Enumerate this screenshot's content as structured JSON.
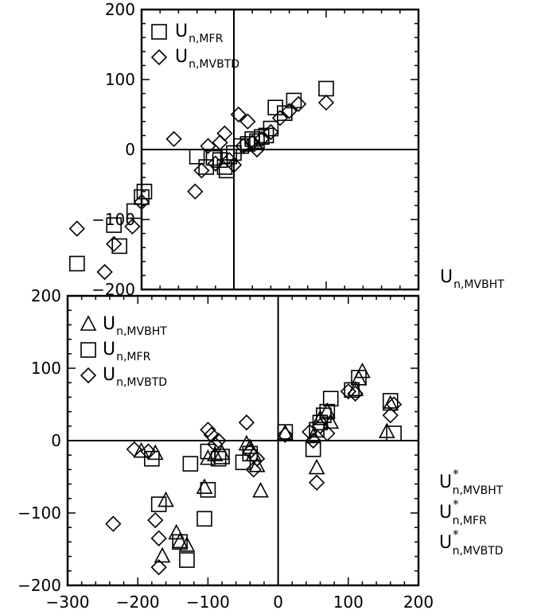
{
  "chart_data": [
    {
      "type": "scatter",
      "xlim": [
        -300,
        200
      ],
      "ylim": [
        -200,
        200
      ],
      "yticks": [
        "200",
        "100",
        "0",
        "−100",
        "−200"
      ],
      "xticks": [],
      "zero_lines": true,
      "legend_position": "top-left",
      "xlabel": "",
      "series": [
        {
          "name": "MFR",
          "marker": "square",
          "points": [
            [
              -170,
              -163
            ],
            [
              -130,
              -108
            ],
            [
              -124,
              -138
            ],
            [
              -97,
              -60
            ],
            [
              -100,
              -68
            ],
            [
              -108,
              -88
            ],
            [
              -40,
              -10
            ],
            [
              -30,
              -25
            ],
            [
              -22,
              -12
            ],
            [
              -15,
              -15
            ],
            [
              -10,
              -25
            ],
            [
              -8,
              -30
            ],
            [
              -5,
              -10
            ],
            [
              0,
              -5
            ],
            [
              8,
              5
            ],
            [
              15,
              8
            ],
            [
              20,
              15
            ],
            [
              25,
              12
            ],
            [
              30,
              18
            ],
            [
              35,
              20
            ],
            [
              40,
              30
            ],
            [
              45,
              60
            ],
            [
              55,
              52
            ],
            [
              65,
              70
            ],
            [
              100,
              87
            ]
          ]
        },
        {
          "name": "MVBTD",
          "marker": "diamond",
          "points": [
            [
              -170,
              -113
            ],
            [
              -140,
              -175
            ],
            [
              -130,
              -135
            ],
            [
              -110,
              -110
            ],
            [
              -100,
              -75
            ],
            [
              -65,
              15
            ],
            [
              -42,
              -60
            ],
            [
              -35,
              -30
            ],
            [
              -28,
              5
            ],
            [
              -20,
              -20
            ],
            [
              -15,
              10
            ],
            [
              -10,
              23
            ],
            [
              -5,
              -15
            ],
            [
              0,
              -22
            ],
            [
              5,
              50
            ],
            [
              10,
              5
            ],
            [
              15,
              40
            ],
            [
              20,
              10
            ],
            [
              25,
              0
            ],
            [
              30,
              15
            ],
            [
              40,
              25
            ],
            [
              50,
              45
            ],
            [
              60,
              55
            ],
            [
              70,
              65
            ],
            [
              100,
              67
            ]
          ]
        }
      ]
    },
    {
      "type": "scatter",
      "xlim": [
        -300,
        200
      ],
      "ylim": [
        -200,
        200
      ],
      "yticks": [
        "200",
        "100",
        "0",
        "−100",
        "−200"
      ],
      "xticks": [
        "−300",
        "−200",
        "−100",
        "0",
        "100",
        "200"
      ],
      "zero_lines": true,
      "legend_position": "top-left",
      "series": [
        {
          "name": "MVBHT",
          "marker": "triangle",
          "points": [
            [
              -195,
              -15
            ],
            [
              -175,
              -18
            ],
            [
              -160,
              -83
            ],
            [
              -165,
              -160
            ],
            [
              -145,
              -128
            ],
            [
              -140,
              -140
            ],
            [
              -130,
              -145
            ],
            [
              -105,
              -65
            ],
            [
              -100,
              -25
            ],
            [
              -90,
              -20
            ],
            [
              -80,
              -18
            ],
            [
              -45,
              -5
            ],
            [
              -40,
              -10
            ],
            [
              -35,
              -20
            ],
            [
              -30,
              -35
            ],
            [
              -25,
              -70
            ],
            [
              10,
              10
            ],
            [
              50,
              5
            ],
            [
              55,
              -38
            ],
            [
              60,
              30
            ],
            [
              70,
              40
            ],
            [
              75,
              25
            ],
            [
              110,
              70
            ],
            [
              115,
              85
            ],
            [
              120,
              95
            ],
            [
              155,
              12
            ],
            [
              160,
              50
            ]
          ]
        },
        {
          "name": "MFR",
          "marker": "square",
          "points": [
            [
              -180,
              -25
            ],
            [
              -170,
              -88
            ],
            [
              -140,
              -140
            ],
            [
              -130,
              -165
            ],
            [
              -125,
              -32
            ],
            [
              -105,
              -108
            ],
            [
              -100,
              -68
            ],
            [
              -100,
              -15
            ],
            [
              -85,
              -25
            ],
            [
              -80,
              -22
            ],
            [
              -50,
              -30
            ],
            [
              -40,
              -18
            ],
            [
              10,
              12
            ],
            [
              50,
              -12
            ],
            [
              55,
              15
            ],
            [
              60,
              25
            ],
            [
              65,
              35
            ],
            [
              70,
              40
            ],
            [
              75,
              58
            ],
            [
              105,
              70
            ],
            [
              115,
              87
            ],
            [
              160,
              55
            ],
            [
              165,
              10
            ]
          ]
        },
        {
          "name": "MVBTD",
          "marker": "diamond",
          "points": [
            [
              -235,
              -115
            ],
            [
              -205,
              -12
            ],
            [
              -185,
              -15
            ],
            [
              -175,
              -110
            ],
            [
              -170,
              -135
            ],
            [
              -170,
              -175
            ],
            [
              -100,
              15
            ],
            [
              -95,
              8
            ],
            [
              -90,
              -5
            ],
            [
              -85,
              0
            ],
            [
              -45,
              25
            ],
            [
              -40,
              -15
            ],
            [
              -35,
              -40
            ],
            [
              -30,
              -25
            ],
            [
              10,
              8
            ],
            [
              45,
              12
            ],
            [
              50,
              0
            ],
            [
              55,
              -58
            ],
            [
              60,
              20
            ],
            [
              70,
              10
            ],
            [
              100,
              68
            ],
            [
              110,
              65
            ],
            [
              160,
              35
            ],
            [
              165,
              50
            ]
          ]
        }
      ]
    }
  ],
  "legends": {
    "top": [
      {
        "marker": "square",
        "base": "U",
        "sub": "n,MFR"
      },
      {
        "marker": "diamond",
        "base": "U",
        "sub": "n,MVBTD"
      }
    ],
    "bottom": [
      {
        "marker": "triangle",
        "base": "U",
        "sub": "n,MVBHT"
      },
      {
        "marker": "square",
        "base": "U",
        "sub": "n,MFR"
      },
      {
        "marker": "diamond",
        "base": "U",
        "sub": "n,MVBTD"
      }
    ]
  },
  "axis_labels": {
    "top_x": {
      "base": "U",
      "sub": "n,MVBHT"
    },
    "bottom_x": [
      {
        "base": "U",
        "sub": "n,MVBHT",
        "sup": "*"
      },
      {
        "base": "U",
        "sub": "n,MFR",
        "sup": "*"
      },
      {
        "base": "U",
        "sub": "n,MVBTD",
        "sup": "*"
      }
    ]
  }
}
